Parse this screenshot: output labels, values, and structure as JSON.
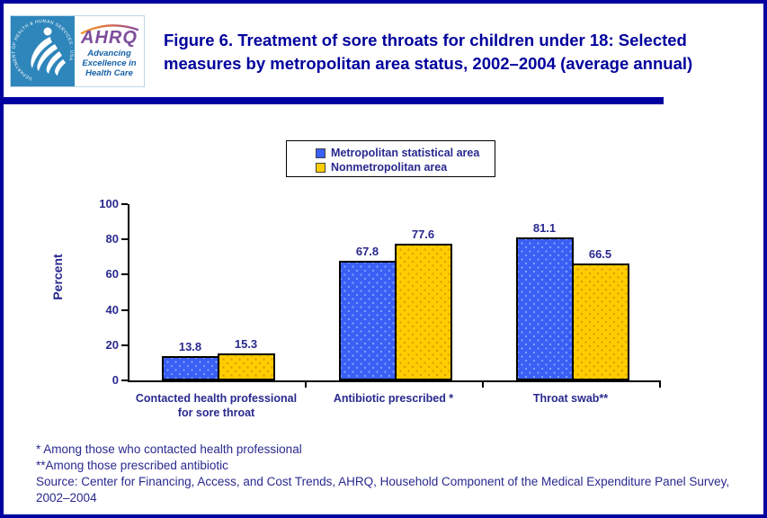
{
  "header": {
    "title_line1": "Figure 6. Treatment of sore throats for children under 18: Selected",
    "title_line2": "measures by metropolitan area status, 2002–2004 (average annual)"
  },
  "logo": {
    "hhs_seal_text": "DEPARTMENT OF HEALTH & HUMAN SERVICES · USA",
    "ahrq_acronym": "AHRQ",
    "tagline_line1": "Advancing",
    "tagline_line2": "Excellence in",
    "tagline_line3": "Health Care"
  },
  "chart_data": {
    "type": "bar",
    "title": "",
    "xlabel": "",
    "ylabel": "Percent",
    "ylim": [
      0,
      100
    ],
    "yticks": [
      0,
      20,
      40,
      60,
      80,
      100
    ],
    "grid": false,
    "legend_position": "top-center",
    "categories": [
      "Contacted health professional for sore throat",
      "Antibiotic prescribed *",
      "Throat swab**"
    ],
    "category_label_lines": [
      [
        "Contacted health professional",
        "for sore throat"
      ],
      [
        "Antibiotic prescribed *"
      ],
      [
        "Throat swab**"
      ]
    ],
    "series": [
      {
        "name": "Metropolitan statistical area",
        "color": "#3a5ff5",
        "values": [
          13.8,
          67.8,
          81.1
        ]
      },
      {
        "name": "Nonmetropolitan area",
        "color": "#ffcc00",
        "values": [
          15.3,
          77.6,
          66.5
        ]
      }
    ]
  },
  "footnotes": {
    "line1": "* Among those who contacted health professional",
    "line2": "**Among those prescribed antibiotic",
    "line3": "Source: Center for Financing, Access, and Cost Trends, AHRQ, Household Component of the Medical Expenditure Panel Survey,",
    "line4": "2002–2004"
  },
  "colors": {
    "page_border_navy": "#0000a0",
    "title_text": "#00009c",
    "label_text": "#29298f",
    "bar_blue": "#3a5ff5",
    "bar_blue_dot": "#84a3ff",
    "bar_yellow": "#ffcc00",
    "bar_yellow_dot": "#df9700",
    "hhs_seal_blue": "#2e86bb",
    "ahrq_purple": "#7d4d9b",
    "tagline_blue": "#1560a8"
  }
}
